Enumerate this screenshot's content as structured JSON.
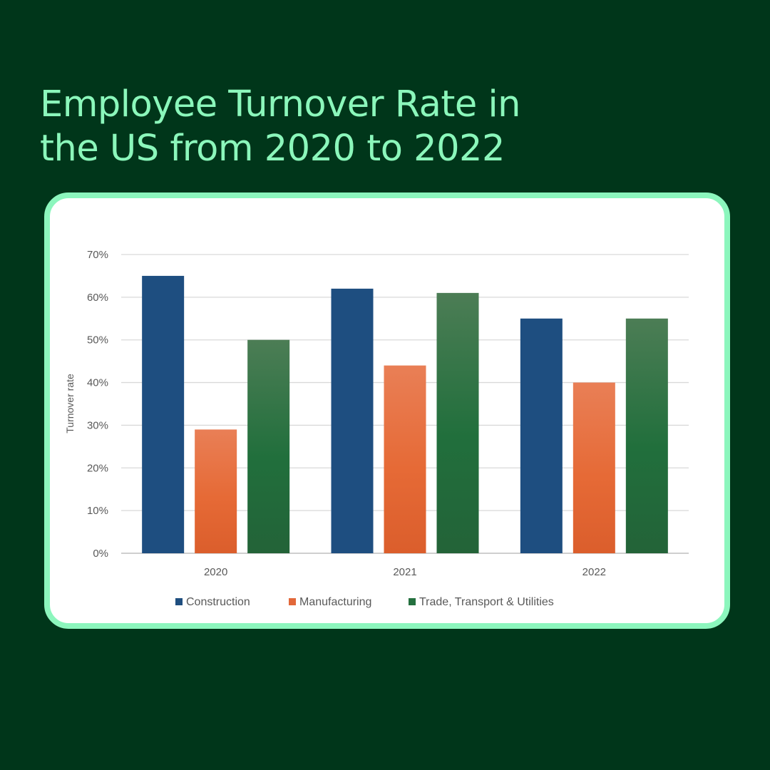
{
  "header": {
    "title_line1": "Employee Turnover Rate in",
    "title_line2": "the US from 2020 to 2022"
  },
  "chart_data": {
    "type": "bar",
    "title": "Employee Turnover Rate in the US from 2020 to 2022",
    "xlabel": "",
    "ylabel": "Turnover rate",
    "categories": [
      "2020",
      "2021",
      "2022"
    ],
    "ylim": [
      0,
      70
    ],
    "yticks": [
      0,
      10,
      20,
      30,
      40,
      50,
      60,
      70
    ],
    "ytick_labels": [
      "0%",
      "10%",
      "20%",
      "30%",
      "40%",
      "50%",
      "60%",
      "70%"
    ],
    "grid": true,
    "legend_position": "bottom",
    "series": [
      {
        "name": "Construction",
        "values": [
          65,
          62,
          55
        ],
        "color": "#1f4e7f"
      },
      {
        "name": "Manufacturing",
        "values": [
          29,
          44,
          40
        ],
        "color": "#e2683a"
      },
      {
        "name": "Trade, Transport & Utilities",
        "values": [
          50,
          61,
          55
        ],
        "color": "#24703f"
      }
    ]
  }
}
